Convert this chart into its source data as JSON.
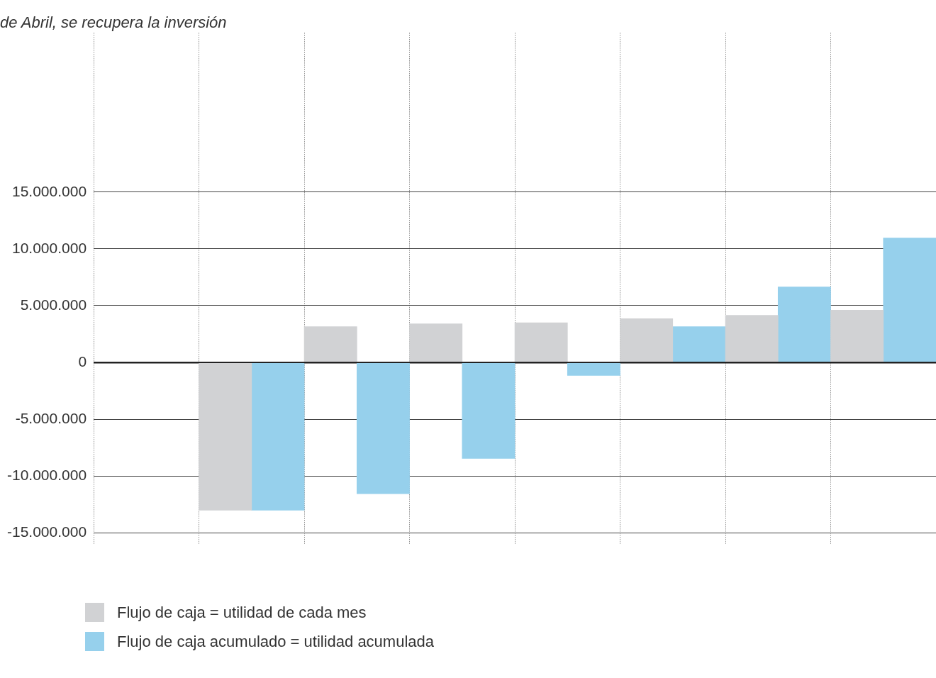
{
  "chart_data": {
    "type": "bar",
    "subtitle": "de Abril, se recupera la inversión",
    "categories": [
      null,
      null,
      null,
      null,
      null,
      null,
      null,
      null
    ],
    "series": [
      {
        "name": "Flujo de caja = utilidad de cada mes",
        "color": "#d1d2d4",
        "values": [
          null,
          -13000000,
          3150000,
          3400000,
          3500000,
          3850000,
          4150000,
          4600000
        ]
      },
      {
        "name": "Flujo de caja acumulado = utilidad acumulada",
        "color": "#96d0ec",
        "values": [
          null,
          -13000000,
          -11550000,
          -8450000,
          -1150000,
          3150000,
          6650000,
          10950000
        ]
      }
    ],
    "ylim": [
      -16000000,
      29000000
    ],
    "yticks": [
      {
        "value": -15000000,
        "label": "-15.000.000"
      },
      {
        "value": -10000000,
        "label": "-10.000.000"
      },
      {
        "value": -5000000,
        "label": "-5.000.000"
      },
      {
        "value": 0,
        "label": "0"
      },
      {
        "value": 5000000,
        "label": "5.000.000"
      },
      {
        "value": 10000000,
        "label": "10.000.000"
      },
      {
        "value": 15000000,
        "label": "15.000.000"
      }
    ],
    "grid": true,
    "legend": "bottom left"
  }
}
